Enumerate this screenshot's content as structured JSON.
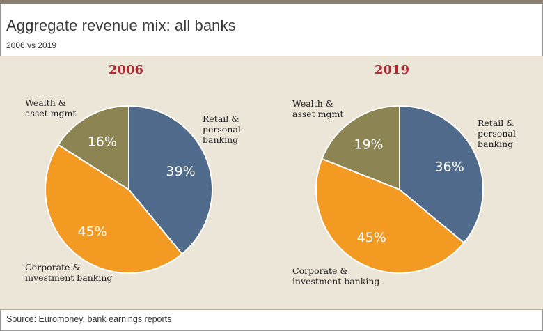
{
  "header": {
    "title": "Aggregate revenue mix: all banks",
    "subtitle": "2006 vs 2019"
  },
  "footer": {
    "source": "Source: Euromoney, bank earnings reports"
  },
  "colors": {
    "retail": "#4f6a8a",
    "corporate": "#f39a23",
    "wealth": "#8c8452",
    "accent_title": "#b0282d",
    "panel": "#ece6d9"
  },
  "chart_data": [
    {
      "type": "pie",
      "title": "2006",
      "slices": [
        {
          "label": "Retail & personal banking",
          "label_lines": [
            "Retail &",
            "personal",
            "banking"
          ],
          "value": 39,
          "value_label": "39%",
          "color": "#4f6a8a"
        },
        {
          "label": "Corporate & investment banking",
          "label_lines": [
            "Corporate &",
            "investment banking"
          ],
          "value": 45,
          "value_label": "45%",
          "color": "#f39a23"
        },
        {
          "label": "Wealth & asset mgmt",
          "label_lines": [
            "Wealth &",
            "asset mgmt"
          ],
          "value": 16,
          "value_label": "16%",
          "color": "#8c8452"
        }
      ],
      "start_angle": "12 o'clock",
      "direction": "clockwise"
    },
    {
      "type": "pie",
      "title": "2019",
      "slices": [
        {
          "label": "Retail & personal banking",
          "label_lines": [
            "Retail &",
            "personal",
            "banking"
          ],
          "value": 36,
          "value_label": "36%",
          "color": "#4f6a8a"
        },
        {
          "label": "Corporate & investment banking",
          "label_lines": [
            "Corporate &",
            "investment banking"
          ],
          "value": 45,
          "value_label": "45%",
          "color": "#f39a23"
        },
        {
          "label": "Wealth & asset mgmt",
          "label_lines": [
            "Wealth &",
            "asset mgmt"
          ],
          "value": 19,
          "value_label": "19%",
          "color": "#8c8452"
        }
      ],
      "start_angle": "12 o'clock",
      "direction": "clockwise"
    }
  ]
}
